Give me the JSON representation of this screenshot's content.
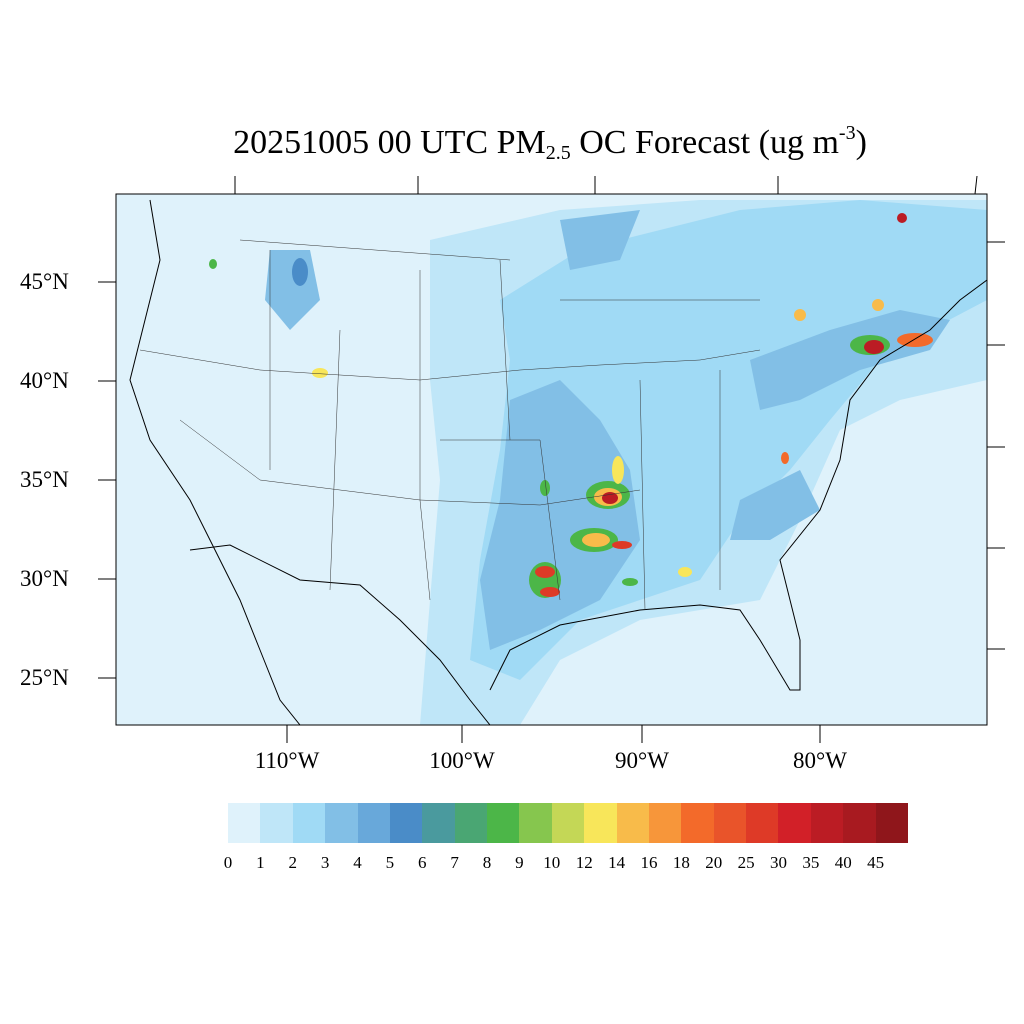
{
  "title": {
    "main": "20251005 00 UTC PM",
    "sub": "2.5",
    "after": " OC Forecast (ug m",
    "sup": "-3",
    "close": ")"
  },
  "lat_labels": [
    "45°N",
    "40°N",
    "35°N",
    "30°N",
    "25°N"
  ],
  "lon_labels": [
    "110°W",
    "100°W",
    "90°W",
    "80°W"
  ],
  "colorbar": {
    "labels": [
      "0",
      "1",
      "2",
      "3",
      "4",
      "5",
      "6",
      "7",
      "8",
      "9",
      "10",
      "12",
      "14",
      "16",
      "18",
      "20",
      "25",
      "30",
      "35",
      "40",
      "45"
    ],
    "colors": [
      "#dff2fb",
      "#bfe6f8",
      "#a0daf5",
      "#82bfe6",
      "#68a8da",
      "#4a8cc8",
      "#4a9a9e",
      "#4aa673",
      "#4cb648",
      "#86c64e",
      "#c4d756",
      "#f8e65a",
      "#f8bb4a",
      "#f7963a",
      "#f36a2a",
      "#e9542a",
      "#de3a27",
      "#d22028",
      "#bb1c24",
      "#a81a20",
      "#8f161b"
    ]
  }
}
